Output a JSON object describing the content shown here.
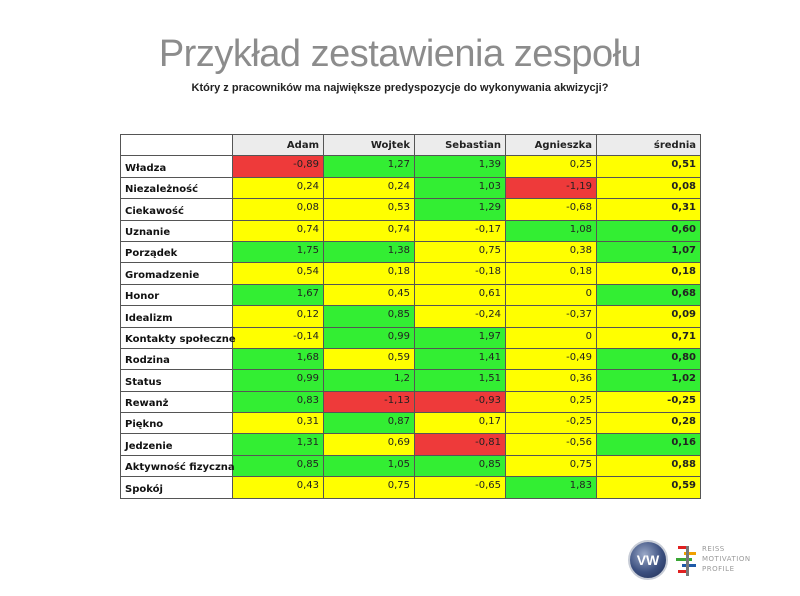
{
  "title": "Przykład zestawienia zespołu",
  "subtitle": "Który z pracowników ma największe predyspozycje do wykonywania akwizycji?",
  "table": {
    "columns": [
      "Adam",
      "Wojtek",
      "Sebastian",
      "Agnieszka",
      "średnia"
    ],
    "rows": [
      {
        "label": "Władza",
        "values": [
          "-0,89",
          "1,27",
          "1,39",
          "0,25",
          "0,51"
        ],
        "colors": [
          "r",
          "g",
          "g",
          "y",
          "y"
        ]
      },
      {
        "label": "Niezależność",
        "values": [
          "0,24",
          "0,24",
          "1,03",
          "-1,19",
          "0,08"
        ],
        "colors": [
          "y",
          "y",
          "g",
          "r",
          "y"
        ]
      },
      {
        "label": "Ciekawość",
        "values": [
          "0,08",
          "0,53",
          "1,29",
          "-0,68",
          "0,31"
        ],
        "colors": [
          "y",
          "y",
          "g",
          "y",
          "y"
        ]
      },
      {
        "label": "Uznanie",
        "values": [
          "0,74",
          "0,74",
          "-0,17",
          "1,08",
          "0,60"
        ],
        "colors": [
          "y",
          "y",
          "y",
          "g",
          "g"
        ]
      },
      {
        "label": "Porządek",
        "values": [
          "1,75",
          "1,38",
          "0,75",
          "0,38",
          "1,07"
        ],
        "colors": [
          "g",
          "g",
          "y",
          "y",
          "g"
        ]
      },
      {
        "label": "Gromadzenie",
        "values": [
          "0,54",
          "0,18",
          "-0,18",
          "0,18",
          "0,18"
        ],
        "colors": [
          "y",
          "y",
          "y",
          "y",
          "y"
        ]
      },
      {
        "label": "Honor",
        "values": [
          "1,67",
          "0,45",
          "0,61",
          "0",
          "0,68"
        ],
        "colors": [
          "g",
          "y",
          "y",
          "y",
          "g"
        ]
      },
      {
        "label": "Idealizm",
        "values": [
          "0,12",
          "0,85",
          "-0,24",
          "-0,37",
          "0,09"
        ],
        "colors": [
          "y",
          "g",
          "y",
          "y",
          "y"
        ]
      },
      {
        "label": "Kontakty społeczne",
        "values": [
          "-0,14",
          "0,99",
          "1,97",
          "0",
          "0,71"
        ],
        "colors": [
          "y",
          "g",
          "g",
          "y",
          "y"
        ]
      },
      {
        "label": "Rodzina",
        "values": [
          "1,68",
          "0,59",
          "1,41",
          "-0,49",
          "0,80"
        ],
        "colors": [
          "g",
          "y",
          "g",
          "y",
          "g"
        ]
      },
      {
        "label": "Status",
        "values": [
          "0,99",
          "1,2",
          "1,51",
          "0,36",
          "1,02"
        ],
        "colors": [
          "g",
          "g",
          "g",
          "y",
          "g"
        ]
      },
      {
        "label": "Rewanż",
        "values": [
          "0,83",
          "-1,13",
          "-0,93",
          "0,25",
          "-0,25"
        ],
        "colors": [
          "g",
          "r",
          "r",
          "y",
          "y"
        ]
      },
      {
        "label": "Piękno",
        "values": [
          "0,31",
          "0,87",
          "0,17",
          "-0,25",
          "0,28"
        ],
        "colors": [
          "y",
          "g",
          "y",
          "y",
          "y"
        ]
      },
      {
        "label": "Jedzenie",
        "values": [
          "1,31",
          "0,69",
          "-0,81",
          "-0,56",
          "0,16"
        ],
        "colors": [
          "g",
          "y",
          "r",
          "y",
          "g"
        ]
      },
      {
        "label": "Aktywność fizyczna",
        "values": [
          "0,85",
          "1,05",
          "0,85",
          "0,75",
          "0,88"
        ],
        "colors": [
          "g",
          "g",
          "g",
          "y",
          "y"
        ]
      },
      {
        "label": "Spokój",
        "values": [
          "0,43",
          "0,75",
          "-0,65",
          "1,83",
          "0,59"
        ],
        "colors": [
          "y",
          "y",
          "y",
          "g",
          "y"
        ]
      }
    ]
  },
  "palette": {
    "y": "#ffff00",
    "g": "#33ee33",
    "r": "#ee3a3a"
  },
  "logos": {
    "vw_icon": "vw-logo-icon",
    "rmp_lines": [
      "REISS",
      "MOTIVATION",
      "PROFILE"
    ],
    "rmp_icon": "reiss-motivation-profile-logo-icon"
  }
}
